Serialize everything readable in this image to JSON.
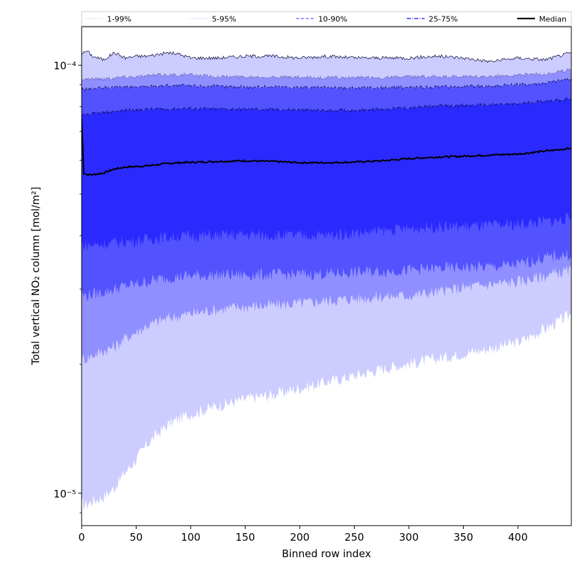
{
  "chart_data": {
    "type": "area",
    "xlabel": "Binned row index",
    "ylabel": "Total vertical NO₂ column [mol/m²]",
    "xlim": [
      0,
      449
    ],
    "ylim": [
      8.4e-06,
      0.000123
    ],
    "yscale": "log",
    "x_ticks": [
      0,
      50,
      100,
      150,
      200,
      250,
      300,
      350,
      400
    ],
    "y_ticks": [
      {
        "value": 1e-05,
        "label": "10⁻⁵"
      },
      {
        "value": 0.0001,
        "label": "10⁻⁴"
      }
    ],
    "legend_location": "top, full width, above plot",
    "colors": {
      "1-99": "#ccccff",
      "5-95": "#8f8fff",
      "10-90": "#5252ff",
      "25-75": "#2a2aff",
      "median": "#000000"
    },
    "x": [
      0,
      2,
      5,
      10,
      20,
      30,
      40,
      50,
      60,
      70,
      80,
      90,
      100,
      125,
      150,
      175,
      200,
      225,
      250,
      275,
      300,
      325,
      350,
      375,
      400,
      425,
      449
    ],
    "bands": [
      {
        "name": "1-99%",
        "color": "#ccccff",
        "lower": [
          9.5e-06,
          9.4e-06,
          9.4e-06,
          9.6e-06,
          9.8e-06,
          1.03e-05,
          1.12e-05,
          1.2e-05,
          1.3e-05,
          1.38e-05,
          1.45e-05,
          1.5e-05,
          1.53e-05,
          1.6e-05,
          1.66e-05,
          1.7e-05,
          1.76e-05,
          1.82e-05,
          1.88e-05,
          1.95e-05,
          2.01e-05,
          2.06e-05,
          2.12e-05,
          2.18e-05,
          2.25e-05,
          2.42e-05,
          2.62e-05
        ],
        "upper": [
          0.000107,
          0.000107,
          0.000108,
          0.000105,
          0.000103,
          0.000107,
          0.000104,
          0.000105,
          0.000105,
          0.000106,
          0.000107,
          0.000106,
          0.000104,
          0.000104,
          0.000105,
          0.000105,
          0.000104,
          0.000105,
          0.000104,
          0.000104,
          0.000104,
          0.000105,
          0.000104,
          0.000102,
          0.000104,
          0.000103,
          0.000107
        ]
      },
      {
        "name": "5-95%",
        "color": "#8f8fff",
        "lower": [
          2.05e-05,
          2.06e-05,
          2.07e-05,
          2.1e-05,
          2.15e-05,
          2.2e-05,
          2.3e-05,
          2.38e-05,
          2.46e-05,
          2.52e-05,
          2.57e-05,
          2.6e-05,
          2.63e-05,
          2.69e-05,
          2.73e-05,
          2.75e-05,
          2.78e-05,
          2.82e-05,
          2.85e-05,
          2.88e-05,
          2.9e-05,
          2.95e-05,
          3.02e-05,
          3.08e-05,
          3.12e-05,
          3.22e-05,
          3.32e-05
        ],
        "upper": [
          9.3e-05,
          9.3e-05,
          9.3e-05,
          9.3e-05,
          9.3e-05,
          9.35e-05,
          9.4e-05,
          9.4e-05,
          9.45e-05,
          9.5e-05,
          9.5e-05,
          9.5e-05,
          9.5e-05,
          9.4e-05,
          9.4e-05,
          9.4e-05,
          9.35e-05,
          9.35e-05,
          9.35e-05,
          9.35e-05,
          9.4e-05,
          9.4e-05,
          9.4e-05,
          9.4e-05,
          9.5e-05,
          9.55e-05,
          9.75e-05
        ]
      },
      {
        "name": "10-90%",
        "color": "#5252ff",
        "lower": [
          2.92e-05,
          2.9e-05,
          2.9e-05,
          2.92e-05,
          2.95e-05,
          3e-05,
          3.05e-05,
          3.08e-05,
          3.12e-05,
          3.16e-05,
          3.19e-05,
          3.21e-05,
          3.22e-05,
          3.24e-05,
          3.24e-05,
          3.24e-05,
          3.25e-05,
          3.26e-05,
          3.28e-05,
          3.3e-05,
          3.32e-05,
          3.35e-05,
          3.37e-05,
          3.38e-05,
          3.42e-05,
          3.55e-05,
          3.62e-05
        ],
        "upper": [
          8.8e-05,
          8.8e-05,
          8.8e-05,
          8.82e-05,
          8.85e-05,
          8.87e-05,
          8.9e-05,
          8.9e-05,
          8.92e-05,
          8.95e-05,
          8.97e-05,
          8.97e-05,
          8.95e-05,
          8.92e-05,
          8.9e-05,
          8.9e-05,
          8.88e-05,
          8.85e-05,
          8.85e-05,
          8.86e-05,
          8.88e-05,
          8.9e-05,
          8.92e-05,
          8.95e-05,
          9e-05,
          9.1e-05,
          9.3e-05
        ]
      },
      {
        "name": "25-75%",
        "color": "#2a2aff",
        "lower": [
          3.82e-05,
          3.8e-05,
          3.8e-05,
          3.8e-05,
          3.82e-05,
          3.85e-05,
          3.87e-05,
          3.9e-05,
          3.92e-05,
          3.95e-05,
          3.97e-05,
          3.98e-05,
          4e-05,
          4e-05,
          4.02e-05,
          4e-05,
          4e-05,
          4e-05,
          4.05e-05,
          4.1e-05,
          4.15e-05,
          4.2e-05,
          4.2e-05,
          4.22e-05,
          4.25e-05,
          4.32e-05,
          4.38e-05
        ],
        "upper": [
          7.6e-05,
          7.62e-05,
          7.65e-05,
          7.7e-05,
          7.75e-05,
          7.8e-05,
          7.85e-05,
          7.86e-05,
          7.88e-05,
          7.9e-05,
          7.9e-05,
          7.92e-05,
          7.92e-05,
          7.9e-05,
          7.9e-05,
          7.88e-05,
          7.86e-05,
          7.84e-05,
          7.86e-05,
          7.9e-05,
          7.95e-05,
          8.02e-05,
          8.05e-05,
          8.08e-05,
          8.12e-05,
          8.25e-05,
          8.35e-05
        ]
      }
    ],
    "series": [
      {
        "name": "Median",
        "color": "#000000",
        "values": [
          7.5e-05,
          5.6e-05,
          5.55e-05,
          5.55e-05,
          5.6e-05,
          5.72e-05,
          5.78e-05,
          5.8e-05,
          5.82e-05,
          5.86e-05,
          5.9e-05,
          5.92e-05,
          5.93e-05,
          5.96e-05,
          5.98e-05,
          5.96e-05,
          5.92e-05,
          5.92e-05,
          5.94e-05,
          5.98e-05,
          6.05e-05,
          6.1e-05,
          6.13e-05,
          6.17e-05,
          6.2e-05,
          6.3e-05,
          6.4e-05
        ]
      }
    ],
    "legend": [
      {
        "label": "1-99%",
        "color": "#ccccff",
        "style": "solid",
        "width": 0.6
      },
      {
        "label": "5-95%",
        "color": "#8f8fff",
        "style": "dotted",
        "width": 0.8
      },
      {
        "label": "10-90%",
        "color": "#5252ff",
        "style": "dashed",
        "width": 1.2
      },
      {
        "label": "25-75%",
        "color": "#2a2aff",
        "style": "dashdot",
        "width": 1.5
      },
      {
        "label": "Median",
        "color": "#000000",
        "style": "solid",
        "width": 2.2
      }
    ]
  }
}
